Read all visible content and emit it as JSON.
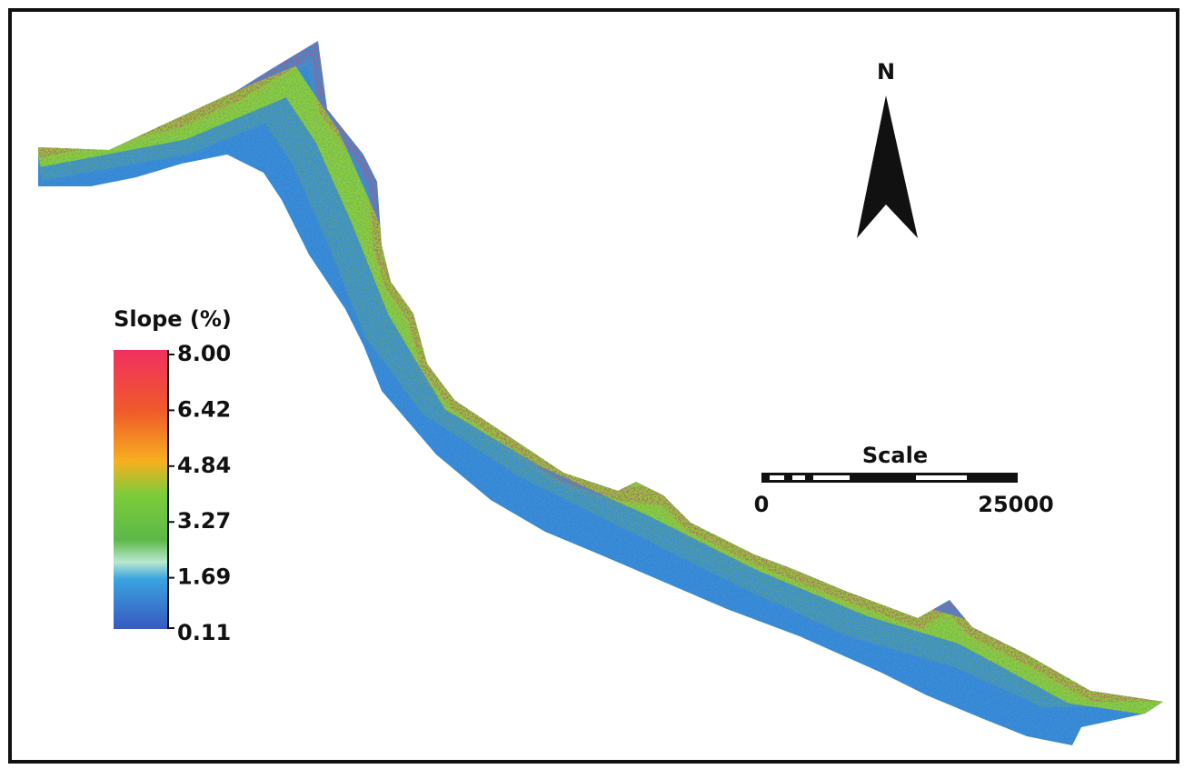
{
  "legend": {
    "title": "Slope (%)",
    "labels": [
      "8.00",
      "6.42",
      "4.84",
      "3.27",
      "1.69",
      "0.11"
    ]
  },
  "north_arrow": {
    "label": "N"
  },
  "scale_bar": {
    "title": "Scale",
    "labels": [
      "0",
      "25000"
    ]
  }
}
